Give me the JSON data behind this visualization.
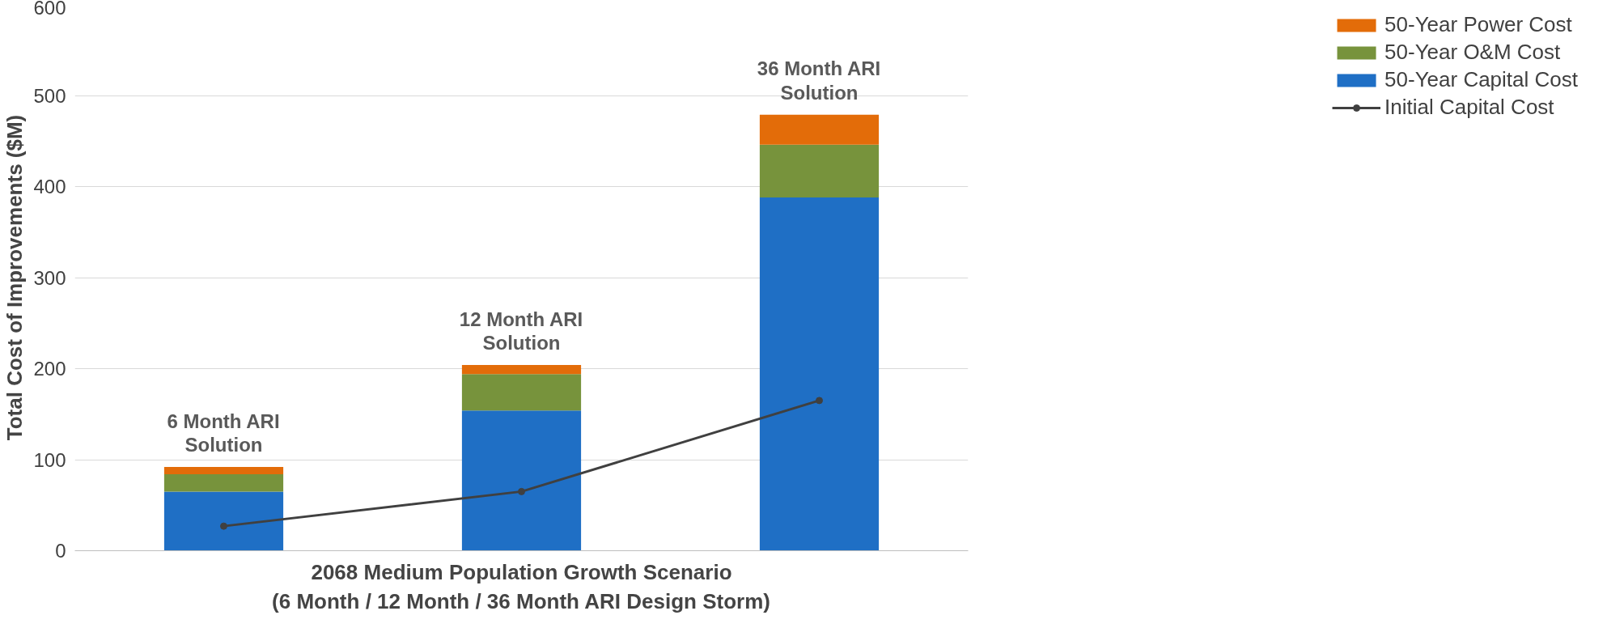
{
  "chart_data": {
    "type": "bar",
    "stacked": true,
    "xlabel": "2068 Medium Population Growth Scenario\n(6 Month / 12 Month / 36 Month ARI Design Storm)",
    "ylabel": "Total Cost of Improvements ($M)",
    "categories": [
      null,
      null,
      null
    ],
    "series": [
      {
        "name": "50-Year Capital Cost",
        "color": "#1f6fc5",
        "values": [
          65,
          154,
          388
        ]
      },
      {
        "name": "50-Year O&M Cost",
        "color": "#77933c",
        "values": [
          19,
          40,
          58
        ]
      },
      {
        "name": "50-Year Power Cost",
        "color": "#e36c09",
        "values": [
          8,
          10,
          33
        ]
      },
      {
        "name": "Initial Capital Cost",
        "type": "line",
        "color": "#404040",
        "marker": "circle",
        "values": [
          27,
          65,
          165
        ]
      }
    ],
    "annotations": [
      "6 Month ARI\nSolution",
      "12 Month ARI\nSolution",
      "36 Month ARI\nSolution"
    ],
    "ylim": [
      0,
      600
    ],
    "yticks": [
      0,
      100,
      200,
      300,
      400,
      500,
      600
    ],
    "grid": "y",
    "legend": "right"
  }
}
